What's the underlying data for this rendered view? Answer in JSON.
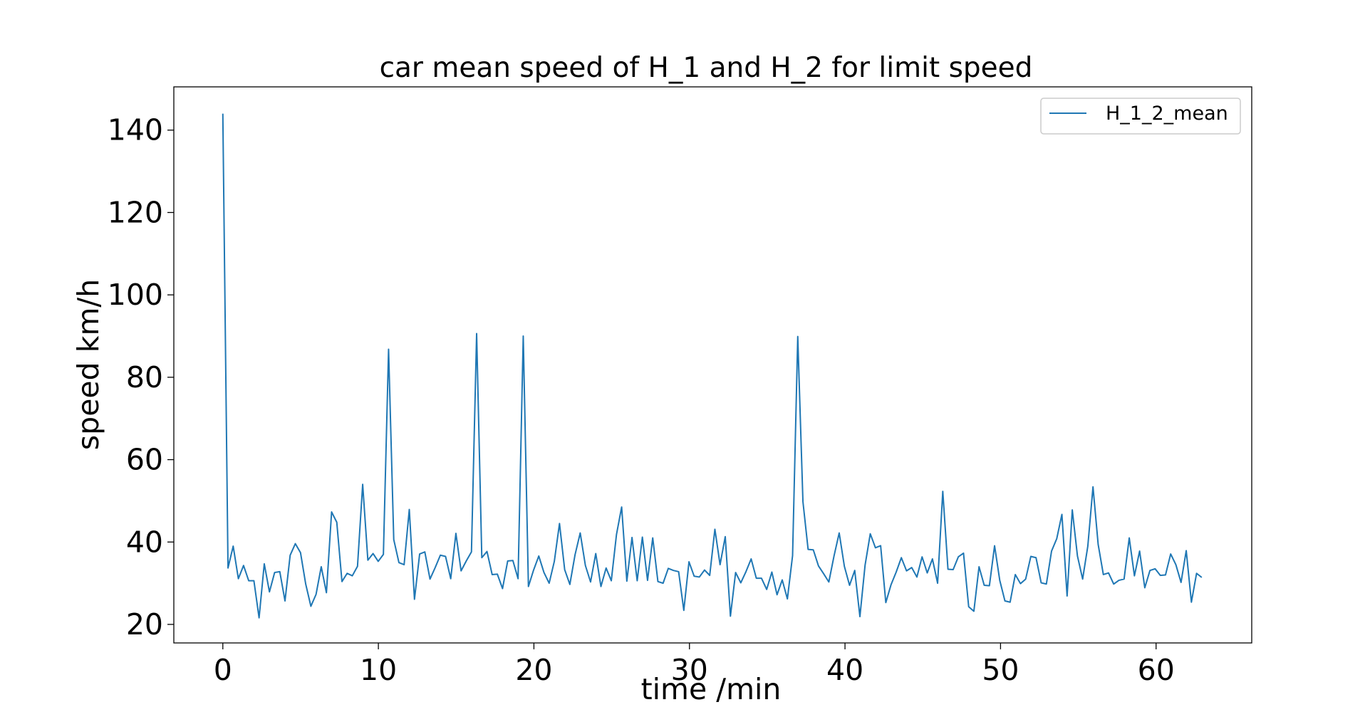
{
  "chart_data": {
    "type": "line",
    "title": "car mean speed of H_1 and H_2 for limit speed",
    "xlabel": "time /min",
    "ylabel": "speed km/h",
    "xlim": [
      -3.15,
      66.15
    ],
    "ylim": [
      15.5,
      150.5
    ],
    "xticks": [
      0,
      10,
      20,
      30,
      40,
      50,
      60
    ],
    "yticks": [
      20,
      40,
      60,
      80,
      100,
      120,
      140
    ],
    "grid": false,
    "legend": {
      "placement": "top-right"
    },
    "x_step_min": 0.333,
    "series": [
      {
        "name": "H_1_2_mean",
        "color": "#1f77b4",
        "values": [
          144.0,
          33.7,
          39.0,
          31.1,
          34.3,
          30.6,
          30.6,
          21.6,
          34.7,
          27.9,
          32.6,
          32.8,
          25.7,
          36.8,
          39.6,
          37.4,
          29.8,
          24.4,
          27.3,
          34.0,
          27.7,
          47.3,
          44.8,
          30.4,
          32.4,
          31.8,
          34.1,
          54.0,
          35.6,
          37.2,
          35.3,
          37.0,
          86.8,
          40.6,
          35.0,
          34.5,
          47.9,
          26.1,
          37.1,
          37.6,
          31.0,
          33.8,
          36.8,
          36.5,
          31.1,
          42.1,
          33.0,
          35.4,
          37.6,
          90.6,
          36.2,
          37.7,
          32.1,
          32.2,
          28.7,
          35.4,
          35.5,
          31.1,
          90.0,
          29.2,
          33.2,
          36.6,
          32.6,
          30.0,
          35.3,
          44.5,
          33.3,
          29.7,
          36.9,
          42.2,
          34.3,
          30.3,
          37.2,
          29.2,
          33.7,
          30.6,
          41.8,
          48.5,
          30.5,
          41.1,
          30.6,
          41.2,
          30.7,
          41.0,
          30.4,
          30.0,
          33.6,
          33.1,
          32.8,
          23.4,
          35.2,
          31.7,
          31.5,
          33.2,
          31.9,
          43.1,
          34.5,
          41.3,
          22.0,
          32.6,
          30.1,
          32.8,
          35.9,
          31.2,
          31.2,
          28.5,
          32.7,
          27.2,
          30.8,
          26.2,
          36.7,
          89.9,
          49.8,
          38.2,
          38.1,
          34.2,
          32.3,
          30.3,
          36.6,
          42.2,
          34.1,
          29.5,
          33.1,
          21.9,
          34.4,
          42.0,
          38.6,
          39.1,
          25.3,
          29.6,
          32.7,
          36.2,
          33.0,
          33.8,
          31.5,
          36.4,
          32.5,
          35.9,
          30.0,
          52.3,
          33.4,
          33.3,
          36.4,
          37.3,
          24.3,
          23.2,
          34.0,
          29.5,
          29.4,
          39.1,
          30.7,
          25.7,
          25.4,
          32.1,
          29.9,
          31.0,
          36.5,
          36.2,
          30.1,
          29.8,
          37.8,
          40.8,
          46.7,
          26.9,
          47.8,
          36.6,
          31.0,
          39.0,
          53.4,
          39.4,
          32.1,
          32.5,
          29.8,
          30.7,
          31.0,
          41.0,
          31.8,
          37.8,
          28.9,
          33.1,
          33.5,
          31.9,
          32.0,
          37.1,
          34.5,
          30.2,
          37.9,
          25.4,
          32.4,
          31.4
        ]
      }
    ]
  }
}
